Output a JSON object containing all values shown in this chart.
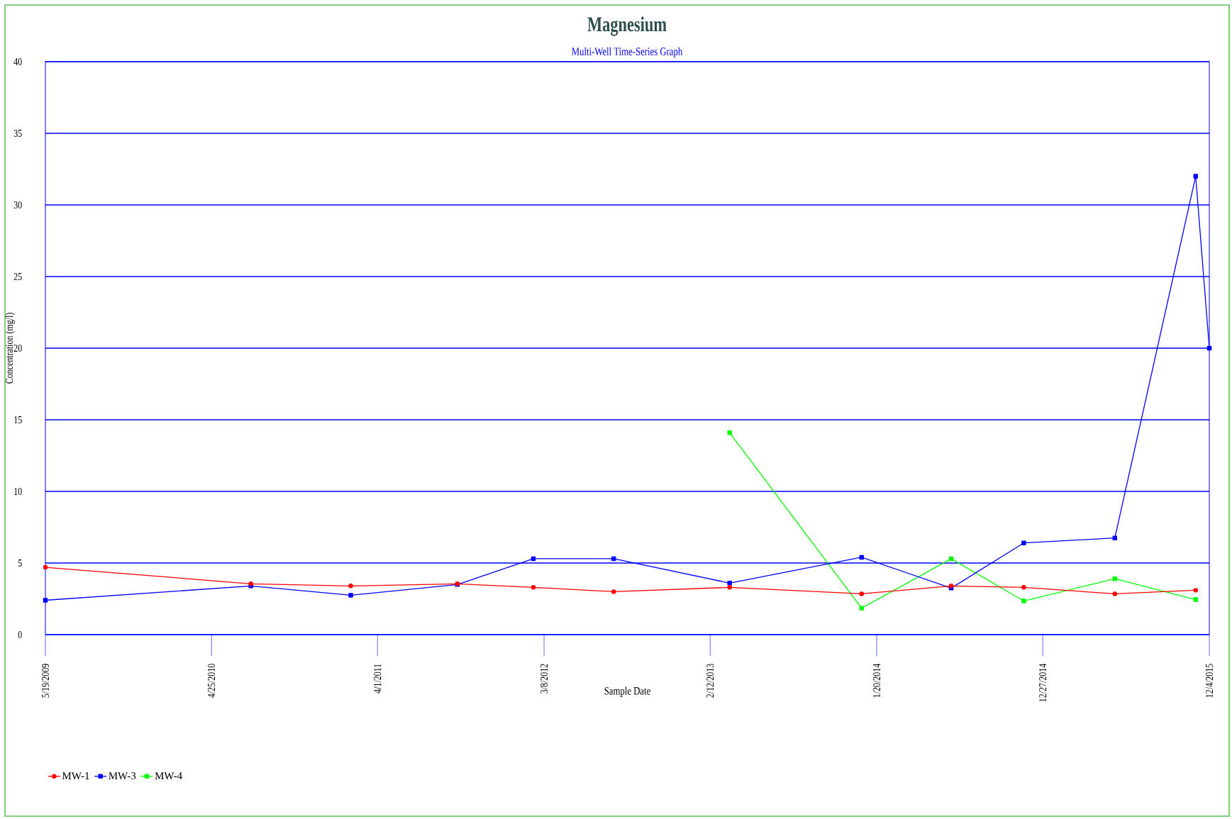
{
  "chart_data": {
    "type": "line",
    "title": "Magnesium",
    "subtitle": "Multi-Well Time-Series Graph",
    "xlabel": "Sample Date",
    "ylabel": "Concentration (mg/l)",
    "xlim": [
      "2009-05-19",
      "2015-12-04"
    ],
    "xticks": [
      {
        "value": "2009-05-19",
        "label": "5/19/2009"
      },
      {
        "value": "2010-04-25",
        "label": "4/25/2010"
      },
      {
        "value": "2011-04-01",
        "label": "4/1/2011"
      },
      {
        "value": "2012-03-08",
        "label": "3/8/2012"
      },
      {
        "value": "2013-02-12",
        "label": "2/12/2013"
      },
      {
        "value": "2014-01-20",
        "label": "1/20/2014"
      },
      {
        "value": "2014-12-27",
        "label": "12/27/2014"
      },
      {
        "value": "2015-12-04",
        "label": "12/4/2015"
      }
    ],
    "ylim": [
      0,
      40
    ],
    "yticks": [
      0,
      5,
      10,
      15,
      20,
      25,
      30,
      35,
      40
    ],
    "grid": "y",
    "legend": "bottom left",
    "line_style": "solid",
    "series": [
      {
        "name": "MW-1",
        "color": "#ff0000",
        "marker": "circle",
        "x": [
          "2009-05-19",
          "2010-07-15",
          "2011-02-05",
          "2011-09-12",
          "2012-02-15",
          "2012-07-29",
          "2013-03-24",
          "2013-12-20",
          "2014-06-22",
          "2014-11-18",
          "2015-05-24",
          "2015-11-06"
        ],
        "values": [
          4.7,
          3.55,
          3.4,
          3.55,
          3.3,
          3.0,
          3.3,
          2.85,
          3.4,
          3.3,
          2.85,
          3.1
        ]
      },
      {
        "name": "MW-3",
        "color": "#0000ff",
        "marker": "square",
        "x": [
          "2009-05-19",
          "2010-07-15",
          "2011-02-05",
          "2011-09-12",
          "2012-02-15",
          "2012-07-29",
          "2013-03-24",
          "2013-12-20",
          "2014-06-22",
          "2014-11-18",
          "2015-05-24",
          "2015-11-06",
          "2015-12-04"
        ],
        "values": [
          2.4,
          3.4,
          2.75,
          3.5,
          5.3,
          5.3,
          3.6,
          5.4,
          3.25,
          6.4,
          6.75,
          32.0,
          20.0
        ]
      },
      {
        "name": "MW-4",
        "color": "#00ff00",
        "marker": "square",
        "x": [
          "2013-03-24",
          "2013-12-20",
          "2014-06-22",
          "2014-11-18",
          "2015-05-24",
          "2015-11-06"
        ],
        "values": [
          14.1,
          1.85,
          5.3,
          2.35,
          3.9,
          2.45
        ]
      }
    ]
  }
}
